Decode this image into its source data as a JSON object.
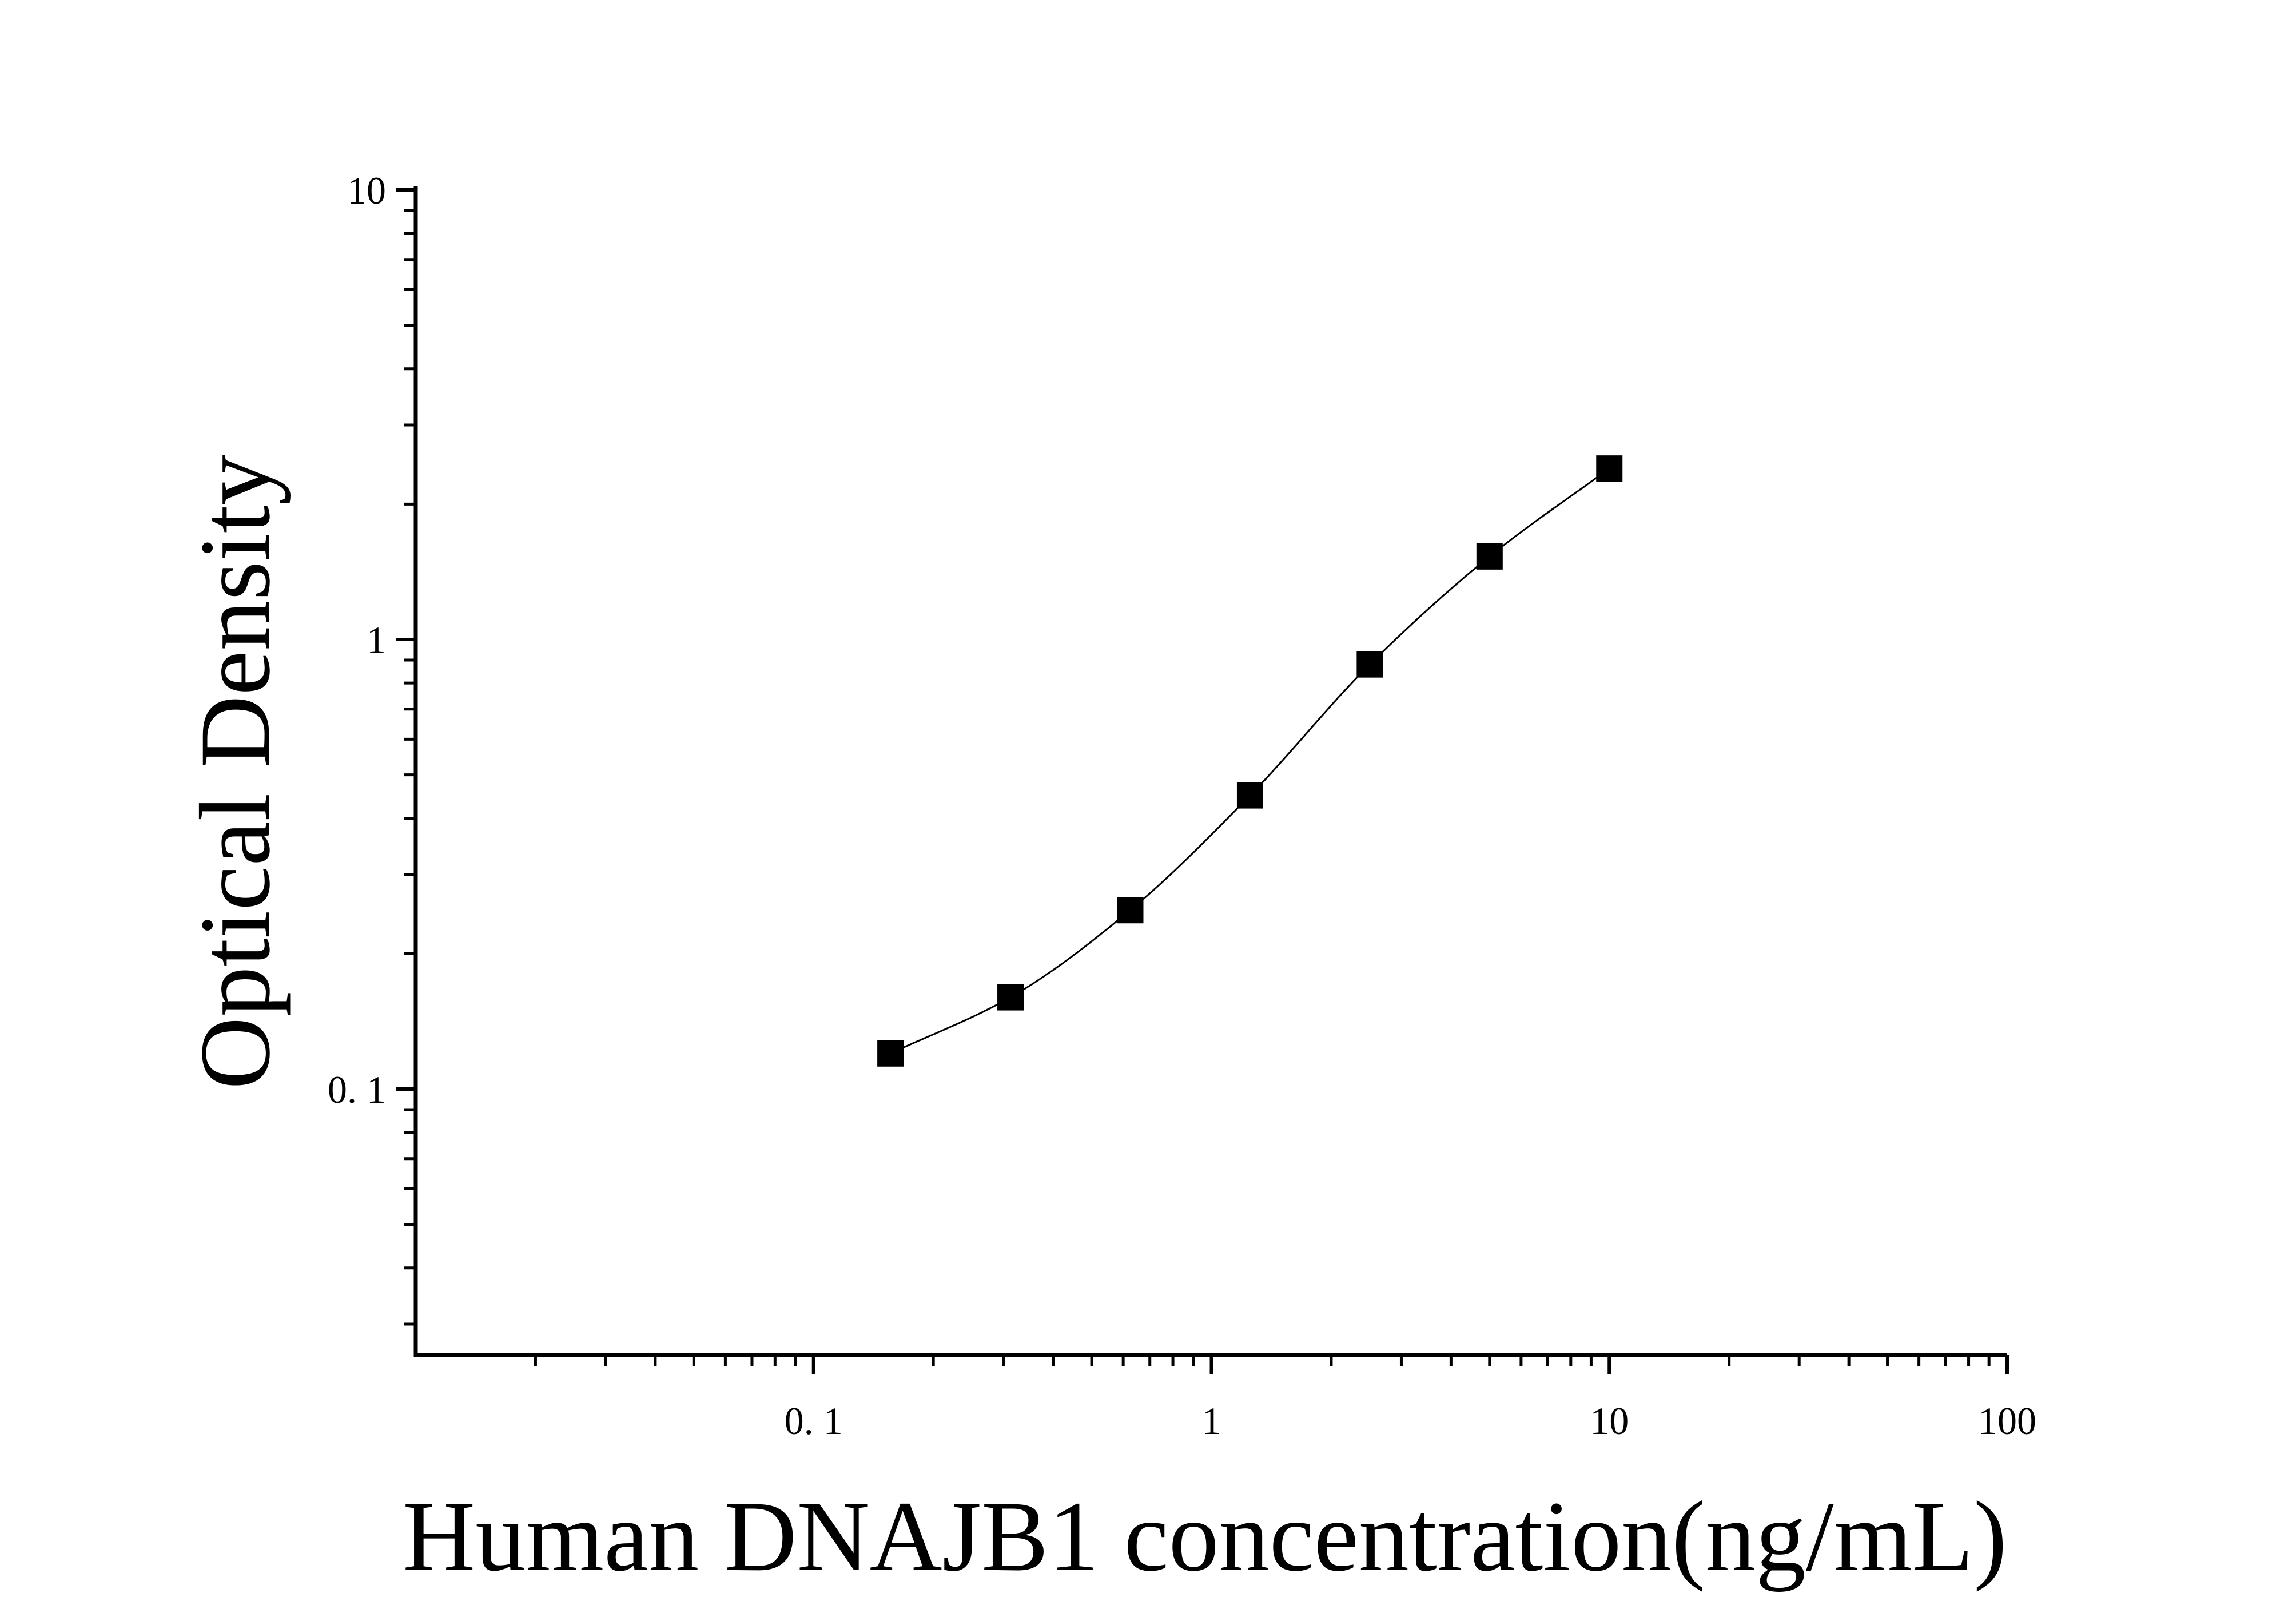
{
  "chart_data": {
    "type": "scatter",
    "title": "",
    "xlabel": "Human DNAJB1 concentration(ng/mL)",
    "ylabel": "Optical Density",
    "xscale": "log",
    "yscale": "log",
    "xlim": [
      0.01,
      100
    ],
    "ylim": [
      0.025,
      10
    ],
    "grid": false,
    "legend": "none",
    "x_tick_labels": [
      "0. 1",
      "1",
      "10",
      "100"
    ],
    "y_tick_labels": [
      "0. 1",
      "1",
      "10"
    ],
    "series": [
      {
        "marker": "square",
        "color": "#000000",
        "fit_line": true,
        "x": [
          0.156,
          0.3125,
          0.625,
          1.25,
          2.5,
          5,
          10
        ],
        "y": [
          0.12,
          0.16,
          0.25,
          0.45,
          0.88,
          1.53,
          2.4
        ]
      }
    ]
  }
}
